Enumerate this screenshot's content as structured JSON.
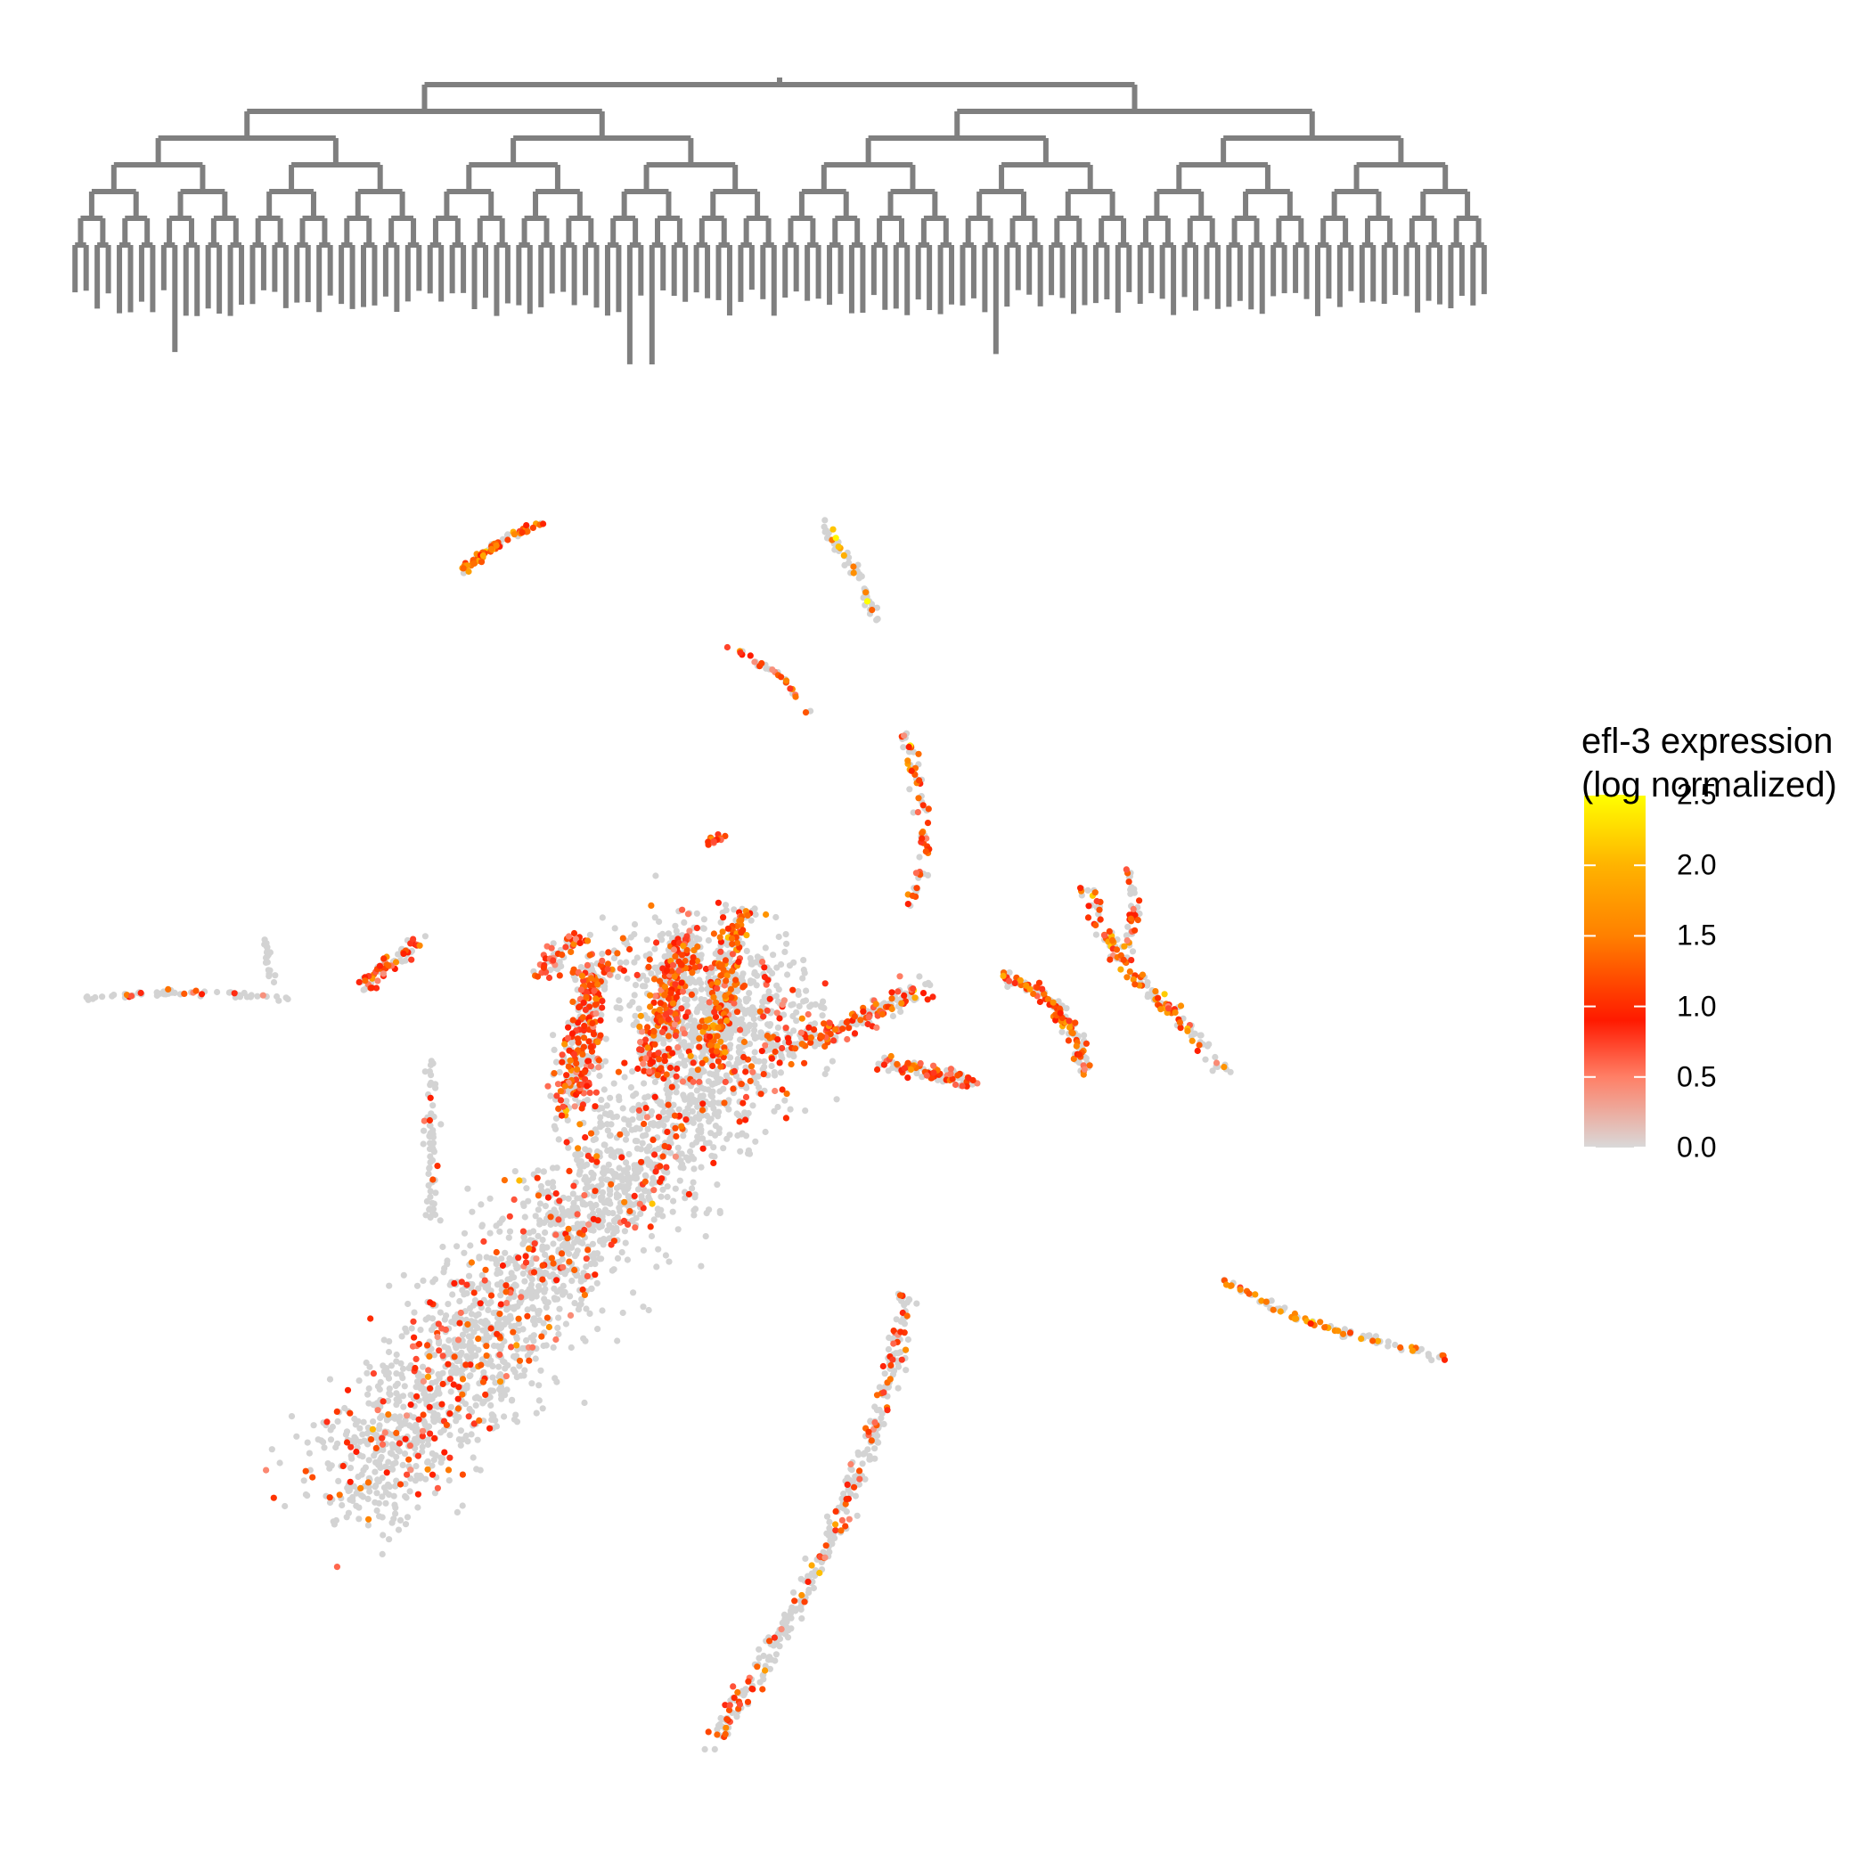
{
  "chart_data": {
    "type": "scatter",
    "subtype": "embedding scatter with lineage dendrogram",
    "title": "",
    "xlabel": "",
    "ylabel": "",
    "axes_visible": false,
    "grid": false,
    "legend": {
      "title_line1": "efl-3 expression",
      "title_line2": "(log normalized)",
      "placement": "right",
      "type": "colorbar",
      "range": [
        0,
        2.5
      ],
      "ticks": [
        0.0,
        0.5,
        1.0,
        1.5,
        2.0,
        2.5
      ],
      "tick_labels": [
        "0.0",
        "0.5",
        "1.0",
        "1.5",
        "2.0",
        "2.5"
      ]
    },
    "colorscale": [
      {
        "value": 0.0,
        "color": "#d9d9d9"
      },
      {
        "value": 0.5,
        "color": "#ff7f66"
      },
      {
        "value": 0.9,
        "color": "#ff1a00"
      },
      {
        "value": 1.5,
        "color": "#ff8000"
      },
      {
        "value": 2.0,
        "color": "#ffb300"
      },
      {
        "value": 2.5,
        "color": "#ffff00"
      }
    ],
    "no_data_color": "#7f7f7f",
    "background_color": "#d3d3d3",
    "dendrogram": {
      "description": "Binary lineage tree; branch color encodes mean expression of the sublineage, gray = not observed",
      "leaf_count": 128
    },
    "clusters": [
      {
        "name": "",
        "points": [
          [
            -2.0,
            -1.2
          ],
          [
            -1.5,
            -0.6
          ],
          [
            -0.9,
            0.2
          ],
          [
            -0.4,
            0.9
          ],
          [
            0.2,
            1.6
          ],
          [
            0.6,
            2.2
          ],
          [
            0.95,
            2.7
          ],
          [
            0.45,
            2.9
          ],
          [
            0.25,
            3.2
          ]
        ],
        "spread": 0.45,
        "count": 2600,
        "expressing_fraction": 0.16,
        "mean_level": 0.95
      },
      {
        "name": "",
        "points": [
          [
            -0.4,
            1.9
          ],
          [
            -0.3,
            2.6
          ],
          [
            -0.2,
            3.1
          ]
        ],
        "spread": 0.12,
        "count": 320,
        "expressing_fraction": 0.55,
        "mean_level": 1.0
      },
      {
        "name": "",
        "points": [
          [
            0.2,
            2.2
          ],
          [
            0.3,
            2.8
          ],
          [
            0.4,
            3.3
          ]
        ],
        "spread": 0.12,
        "count": 300,
        "expressing_fraction": 0.6,
        "mean_level": 1.05
      },
      {
        "name": "",
        "points": [
          [
            0.6,
            2.3
          ],
          [
            0.7,
            2.9
          ],
          [
            0.8,
            3.5
          ]
        ],
        "spread": 0.1,
        "count": 220,
        "expressing_fraction": 0.55,
        "mean_level": 1.3
      },
      {
        "name": "",
        "points": [
          [
            1.0,
            2.4
          ],
          [
            1.4,
            2.5
          ],
          [
            1.8,
            2.7
          ],
          [
            2.1,
            2.9
          ]
        ],
        "spread": 0.08,
        "count": 180,
        "expressing_fraction": 0.55,
        "mean_level": 1.0
      },
      {
        "name": "",
        "points": [
          [
            1.8,
            2.3
          ],
          [
            2.2,
            2.2
          ],
          [
            2.5,
            2.1
          ]
        ],
        "spread": 0.05,
        "count": 90,
        "expressing_fraction": 0.6,
        "mean_level": 1.0
      },
      {
        "name": "",
        "points": [
          [
            2.7,
            3.0
          ],
          [
            3.0,
            2.85
          ],
          [
            3.2,
            2.55
          ],
          [
            3.3,
            2.2
          ]
        ],
        "spread": 0.05,
        "count": 130,
        "expressing_fraction": 0.6,
        "mean_level": 1.2
      },
      {
        "name": "",
        "points": [
          [
            3.3,
            3.7
          ],
          [
            3.5,
            3.2
          ],
          [
            3.8,
            2.8
          ],
          [
            4.1,
            2.5
          ],
          [
            4.3,
            2.2
          ]
        ],
        "spread": 0.05,
        "count": 140,
        "expressing_fraction": 0.5,
        "mean_level": 1.3
      },
      {
        "name": "",
        "points": [
          [
            3.6,
            3.9
          ],
          [
            3.65,
            3.5
          ],
          [
            3.6,
            3.2
          ]
        ],
        "spread": 0.03,
        "count": 40,
        "expressing_fraction": 0.4,
        "mean_level": 1.0
      },
      {
        "name": "",
        "points": [
          [
            -0.6,
            3.0
          ],
          [
            -0.5,
            3.2
          ],
          [
            -0.3,
            3.3
          ]
        ],
        "spread": 0.06,
        "count": 60,
        "expressing_fraction": 0.5,
        "mean_level": 1.0
      },
      {
        "name": "",
        "points": [
          [
            -1.4,
            2.3
          ],
          [
            -1.4,
            1.6
          ],
          [
            -1.4,
            1.0
          ]
        ],
        "spread": 0.04,
        "count": 60,
        "expressing_fraction": 0.15,
        "mean_level": 0.9
      },
      {
        "name": "",
        "points": [
          [
            -3.9,
            2.8
          ],
          [
            -3.4,
            2.85
          ],
          [
            -2.9,
            2.85
          ],
          [
            -2.4,
            2.8
          ]
        ],
        "spread": 0.02,
        "count": 60,
        "expressing_fraction": 0.2,
        "mean_level": 0.9
      },
      {
        "name": "",
        "points": [
          [
            -2.6,
            3.3
          ],
          [
            -2.55,
            2.95
          ]
        ],
        "spread": 0.02,
        "count": 20,
        "expressing_fraction": 0.0,
        "mean_level": 0.0
      },
      {
        "name": "",
        "points": [
          [
            -1.2,
            6.3
          ],
          [
            -0.9,
            6.55
          ],
          [
            -0.6,
            6.7
          ]
        ],
        "spread": 0.03,
        "count": 70,
        "expressing_fraction": 0.7,
        "mean_level": 1.4
      },
      {
        "name": "",
        "points": [
          [
            1.4,
            6.7
          ],
          [
            1.65,
            6.3
          ],
          [
            1.8,
            5.9
          ]
        ],
        "spread": 0.03,
        "count": 60,
        "expressing_fraction": 0.3,
        "mean_level": 1.7
      },
      {
        "name": "",
        "points": [
          [
            0.7,
            5.7
          ],
          [
            1.1,
            5.45
          ],
          [
            1.3,
            5.15
          ]
        ],
        "spread": 0.02,
        "count": 30,
        "expressing_fraction": 0.5,
        "mean_level": 1.0
      },
      {
        "name": "",
        "points": [
          [
            2.0,
            5.0
          ],
          [
            2.1,
            4.5
          ],
          [
            2.15,
            4.0
          ],
          [
            2.05,
            3.6
          ]
        ],
        "spread": 0.04,
        "count": 70,
        "expressing_fraction": 0.6,
        "mean_level": 1.2
      },
      {
        "name": "",
        "points": [
          [
            0.55,
            4.05
          ],
          [
            0.7,
            4.15
          ]
        ],
        "spread": 0.03,
        "count": 15,
        "expressing_fraction": 0.8,
        "mean_level": 1.0
      },
      {
        "name": "",
        "points": [
          [
            -1.9,
            2.9
          ],
          [
            -1.7,
            3.1
          ],
          [
            -1.5,
            3.25
          ]
        ],
        "spread": 0.05,
        "count": 70,
        "expressing_fraction": 0.6,
        "mean_level": 1.0
      },
      {
        "name": "",
        "points": [
          [
            2.0,
            0.4
          ],
          [
            1.9,
            -0.3
          ],
          [
            1.7,
            -1.0
          ],
          [
            1.4,
            -1.8
          ],
          [
            1.0,
            -2.6
          ],
          [
            0.6,
            -3.3
          ]
        ],
        "spread": 0.06,
        "count": 340,
        "expressing_fraction": 0.25,
        "mean_level": 1.0
      },
      {
        "name": "",
        "points": [
          [
            4.3,
            0.5
          ],
          [
            4.8,
            0.2
          ],
          [
            5.4,
            0.0
          ],
          [
            5.9,
            -0.15
          ]
        ],
        "spread": 0.03,
        "count": 90,
        "expressing_fraction": 0.5,
        "mean_level": 1.5
      }
    ]
  }
}
